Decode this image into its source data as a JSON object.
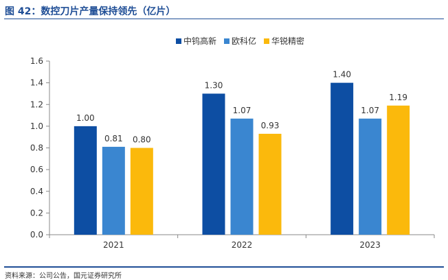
{
  "title": "图 42：数控刀片产量保持领先（亿片）",
  "source": "资料来源：公司公告，国元证券研究所",
  "chart_data": {
    "type": "bar",
    "categories": [
      "2021",
      "2022",
      "2023"
    ],
    "series": [
      {
        "name": "中钨高新",
        "values": [
          1.0,
          1.3,
          1.4
        ],
        "color": "#0d4ea3"
      },
      {
        "name": "欧科亿",
        "values": [
          0.81,
          1.07,
          1.07
        ],
        "color": "#3a86d0"
      },
      {
        "name": "华锐精密",
        "values": [
          0.8,
          0.93,
          1.19
        ],
        "color": "#fbb90c"
      }
    ],
    "data_labels": [
      [
        "1.00",
        "1.30",
        "1.40"
      ],
      [
        "0.81",
        "1.07",
        "1.07"
      ],
      [
        "0.80",
        "0.93",
        "1.19"
      ]
    ],
    "yticks": [
      "0.0",
      "0.2",
      "0.4",
      "0.6",
      "0.8",
      "1.0",
      "1.2",
      "1.4",
      "1.6"
    ],
    "ylim": [
      0,
      1.6
    ],
    "grid": false,
    "legend_position": "top-center"
  }
}
